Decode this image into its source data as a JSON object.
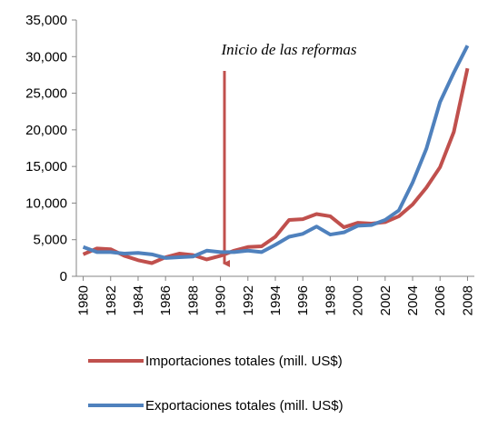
{
  "chart_data": {
    "type": "line",
    "annotation": "Inicio de las reformas",
    "x": [
      1980,
      1981,
      1982,
      1983,
      1984,
      1985,
      1986,
      1987,
      1988,
      1989,
      1990,
      1991,
      1992,
      1993,
      1994,
      1995,
      1996,
      1997,
      1998,
      1999,
      2000,
      2001,
      2002,
      2003,
      2004,
      2005,
      2006,
      2007,
      2008
    ],
    "xlim": [
      1979.5,
      2008.5
    ],
    "xticks": [
      1980,
      1982,
      1984,
      1986,
      1988,
      1990,
      1992,
      1994,
      1996,
      1998,
      2000,
      2002,
      2004,
      2006,
      2008
    ],
    "ylim": [
      0,
      35000
    ],
    "yticks": [
      0,
      {
        "value": 5000,
        "label": "5,000"
      },
      {
        "value": 10000,
        "label": "10,000"
      },
      {
        "value": 15000,
        "label": "15,000"
      },
      {
        "value": 20000,
        "label": "20,000"
      },
      {
        "value": 25000,
        "label": "25,000"
      },
      {
        "value": 30000,
        "label": "30,000"
      },
      {
        "value": 35000,
        "label": "35,000"
      }
    ],
    "grid": false,
    "legend": "bottom",
    "series": [
      {
        "name": "Importaciones totales (mill. US$)",
        "color": "#c0504d",
        "values": [
          3000,
          3800,
          3700,
          2800,
          2200,
          1800,
          2600,
          3100,
          2900,
          2300,
          2800,
          3500,
          4000,
          4100,
          5400,
          7700,
          7800,
          8500,
          8200,
          6700,
          7300,
          7200,
          7400,
          8200,
          9800,
          12100,
          14900,
          19700,
          28400
        ]
      },
      {
        "name": "Exportaciones totales (mill. US$)",
        "color": "#4f81bd",
        "values": [
          4000,
          3300,
          3300,
          3100,
          3200,
          3000,
          2500,
          2600,
          2700,
          3500,
          3300,
          3300,
          3500,
          3300,
          4300,
          5400,
          5800,
          6800,
          5700,
          6000,
          6900,
          7000,
          7700,
          9000,
          12800,
          17400,
          23800,
          27800,
          31500
        ]
      }
    ]
  }
}
